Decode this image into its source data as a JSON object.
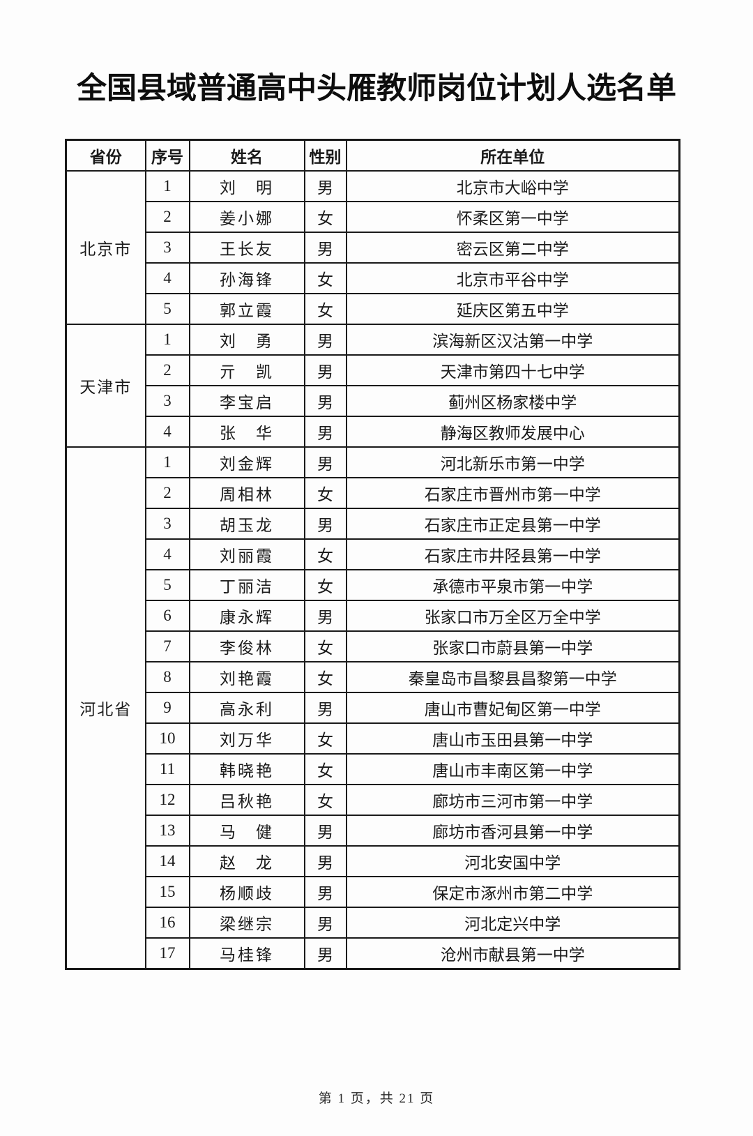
{
  "page": {
    "title": "全国县域普通高中头雁教师岗位计划人选名单",
    "footer": "第 1 页，共 21 页"
  },
  "colors": {
    "background": "#fdfdfd",
    "border": "#1a1a1a",
    "text": "#1a1a1a"
  },
  "table": {
    "headers": [
      "省份",
      "序号",
      "姓名",
      "性别",
      "所在单位"
    ],
    "provinces": [
      {
        "name": "北京市",
        "teachers": [
          {
            "no": "1",
            "name": "刘　明",
            "gender": "男",
            "unit": "北京市大峪中学"
          },
          {
            "no": "2",
            "name": "姜小娜",
            "gender": "女",
            "unit": "怀柔区第一中学"
          },
          {
            "no": "3",
            "name": "王长友",
            "gender": "男",
            "unit": "密云区第二中学"
          },
          {
            "no": "4",
            "name": "孙海锋",
            "gender": "女",
            "unit": "北京市平谷中学"
          },
          {
            "no": "5",
            "name": "郭立霞",
            "gender": "女",
            "unit": "延庆区第五中学"
          }
        ]
      },
      {
        "name": "天津市",
        "teachers": [
          {
            "no": "1",
            "name": "刘　勇",
            "gender": "男",
            "unit": "滨海新区汉沽第一中学"
          },
          {
            "no": "2",
            "name": "亓　凯",
            "gender": "男",
            "unit": "天津市第四十七中学"
          },
          {
            "no": "3",
            "name": "李宝启",
            "gender": "男",
            "unit": "蓟州区杨家楼中学"
          },
          {
            "no": "4",
            "name": "张　华",
            "gender": "男",
            "unit": "静海区教师发展中心"
          }
        ]
      },
      {
        "name": "河北省",
        "teachers": [
          {
            "no": "1",
            "name": "刘金辉",
            "gender": "男",
            "unit": "河北新乐市第一中学"
          },
          {
            "no": "2",
            "name": "周相林",
            "gender": "女",
            "unit": "石家庄市晋州市第一中学"
          },
          {
            "no": "3",
            "name": "胡玉龙",
            "gender": "男",
            "unit": "石家庄市正定县第一中学"
          },
          {
            "no": "4",
            "name": "刘丽霞",
            "gender": "女",
            "unit": "石家庄市井陉县第一中学"
          },
          {
            "no": "5",
            "name": "丁丽洁",
            "gender": "女",
            "unit": "承德市平泉市第一中学"
          },
          {
            "no": "6",
            "name": "康永辉",
            "gender": "男",
            "unit": "张家口市万全区万全中学"
          },
          {
            "no": "7",
            "name": "李俊林",
            "gender": "女",
            "unit": "张家口市蔚县第一中学"
          },
          {
            "no": "8",
            "name": "刘艳霞",
            "gender": "女",
            "unit": "秦皇岛市昌黎县昌黎第一中学"
          },
          {
            "no": "9",
            "name": "高永利",
            "gender": "男",
            "unit": "唐山市曹妃甸区第一中学"
          },
          {
            "no": "10",
            "name": "刘万华",
            "gender": "女",
            "unit": "唐山市玉田县第一中学"
          },
          {
            "no": "11",
            "name": "韩晓艳",
            "gender": "女",
            "unit": "唐山市丰南区第一中学"
          },
          {
            "no": "12",
            "name": "吕秋艳",
            "gender": "女",
            "unit": "廊坊市三河市第一中学"
          },
          {
            "no": "13",
            "name": "马　健",
            "gender": "男",
            "unit": "廊坊市香河县第一中学"
          },
          {
            "no": "14",
            "name": "赵　龙",
            "gender": "男",
            "unit": "河北安国中学"
          },
          {
            "no": "15",
            "name": "杨顺歧",
            "gender": "男",
            "unit": "保定市涿州市第二中学"
          },
          {
            "no": "16",
            "name": "梁继宗",
            "gender": "男",
            "unit": "河北定兴中学"
          },
          {
            "no": "17",
            "name": "马桂锋",
            "gender": "男",
            "unit": "沧州市献县第一中学"
          }
        ]
      }
    ]
  }
}
